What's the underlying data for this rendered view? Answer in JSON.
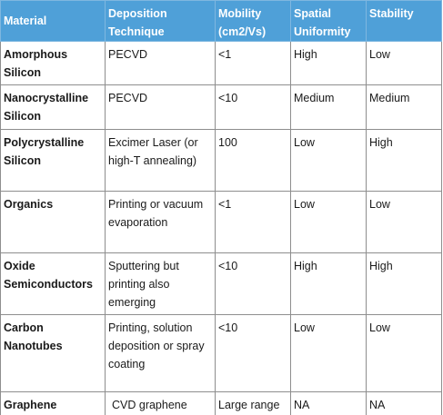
{
  "table": {
    "headers": [
      {
        "text": "Material"
      },
      {
        "text": "Deposition Technique"
      },
      {
        "text": "Mobility (cm2/Vs)"
      },
      {
        "text": "Spatial Uniformity"
      },
      {
        "text": "Stability"
      }
    ],
    "rows": [
      {
        "material": "Amorphous Silicon",
        "deposition": "PECVD",
        "mobility": "<1",
        "uniformity": "High",
        "stability": "Low"
      },
      {
        "material": "Nanocrystalline Silicon",
        "deposition": "PECVD",
        "mobility": "<10",
        "uniformity": "Medium",
        "stability": "Medium"
      },
      {
        "material": "Polycrystalline Silicon",
        "deposition": "Excimer Laser (or high-T annealing)",
        "mobility": "100",
        "uniformity": "Low",
        "stability": "High"
      },
      {
        "material": "Organics",
        "deposition": "Printing or vacuum evaporation",
        "mobility": "<1",
        "uniformity": "Low",
        "stability": "Low"
      },
      {
        "material": "Oxide Semiconductors",
        "deposition": "Sputtering but printing also emerging",
        "mobility": "<10",
        "uniformity": "High",
        "stability": "High"
      },
      {
        "material": "Carbon Nanotubes",
        "deposition": "Printing, solution deposition or spray coating",
        "mobility": "<10",
        "uniformity": "Low",
        "stability": "Low"
      },
      {
        "material": "Graphene",
        "deposition": "CVD graphene",
        "mobility": "Large range",
        "uniformity": "NA",
        "stability": "NA"
      }
    ]
  }
}
